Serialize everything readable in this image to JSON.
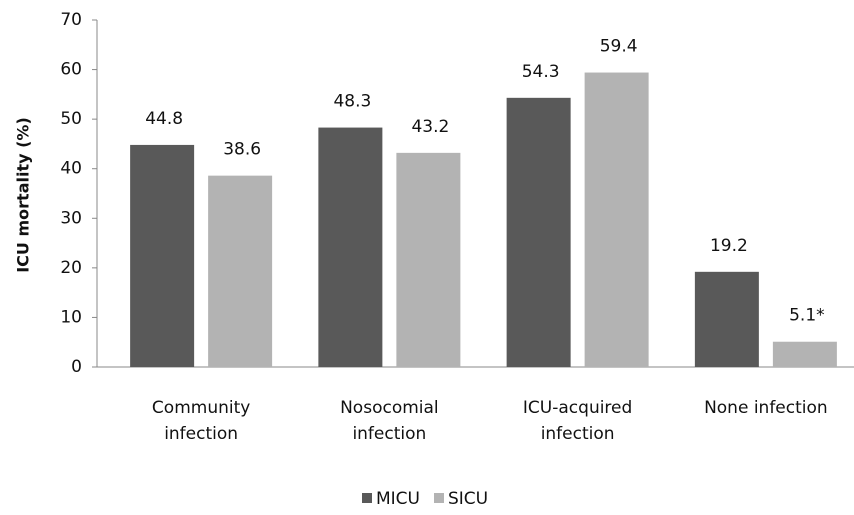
{
  "chart_data": {
    "type": "bar",
    "y_label": "ICU mortality (%)",
    "categories": [
      "Community\ninfection",
      "Nosocomial\ninfection",
      "ICU-acquired\ninfection",
      "None infection"
    ],
    "series": [
      {
        "name": "MICU",
        "color": "#595959",
        "values": [
          44.8,
          48.3,
          54.3,
          19.2
        ]
      },
      {
        "name": "SICU",
        "color": "#b3b3b3",
        "values": [
          38.6,
          43.2,
          59.4,
          5.1
        ],
        "value_labels": [
          "38.6",
          "43.2",
          "59.4",
          "5.1*"
        ]
      }
    ],
    "ylim": [
      0,
      70
    ],
    "yticks": [
      0,
      10,
      20,
      30,
      40,
      50,
      60,
      70
    ],
    "grid": false,
    "legend": "bottom"
  }
}
